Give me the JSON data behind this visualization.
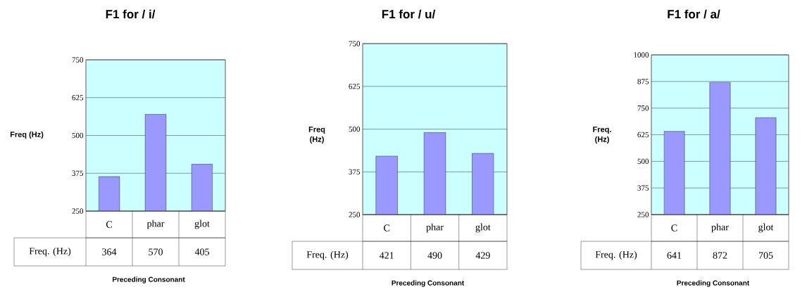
{
  "chart_data": [
    {
      "type": "bar",
      "title": "F1 for / i/",
      "ylabel": "Freq (Hz)",
      "xlabel": "Preceding Consonant",
      "categories": [
        "C",
        "phar",
        "glot"
      ],
      "series": [
        {
          "name": "Freq. (Hz)",
          "color": "#9999ff",
          "values": [
            364,
            570,
            405
          ]
        }
      ],
      "ylim": [
        250,
        750
      ],
      "yticks": [
        250,
        375,
        500,
        625,
        750
      ],
      "grid": "y",
      "data_labels": true
    },
    {
      "type": "bar",
      "title": "F1 for / u/",
      "ylabel": "Freq (Hz)",
      "xlabel": "Preceding Consonant",
      "categories": [
        "C",
        "phar",
        "glot"
      ],
      "series": [
        {
          "name": "Freq. (Hz)",
          "color": "#9999ff",
          "values": [
            421,
            490,
            429
          ]
        }
      ],
      "ylim": [
        250,
        750
      ],
      "yticks": [
        250,
        375,
        500,
        625,
        750
      ],
      "grid": "y",
      "data_labels": true
    },
    {
      "type": "bar",
      "title": "F1 for / a/",
      "ylabel": "Freq. (Hz)",
      "xlabel": "Preceding Consonant",
      "categories": [
        "C",
        "phar",
        "glot"
      ],
      "series": [
        {
          "name": "Freq. (Hz)",
          "color": "#9999ff",
          "values": [
            641,
            872,
            705
          ]
        }
      ],
      "ylim": [
        250,
        1000
      ],
      "yticks": [
        250,
        375,
        500,
        625,
        750,
        875,
        1000
      ],
      "grid": "y",
      "data_labels": true
    }
  ]
}
